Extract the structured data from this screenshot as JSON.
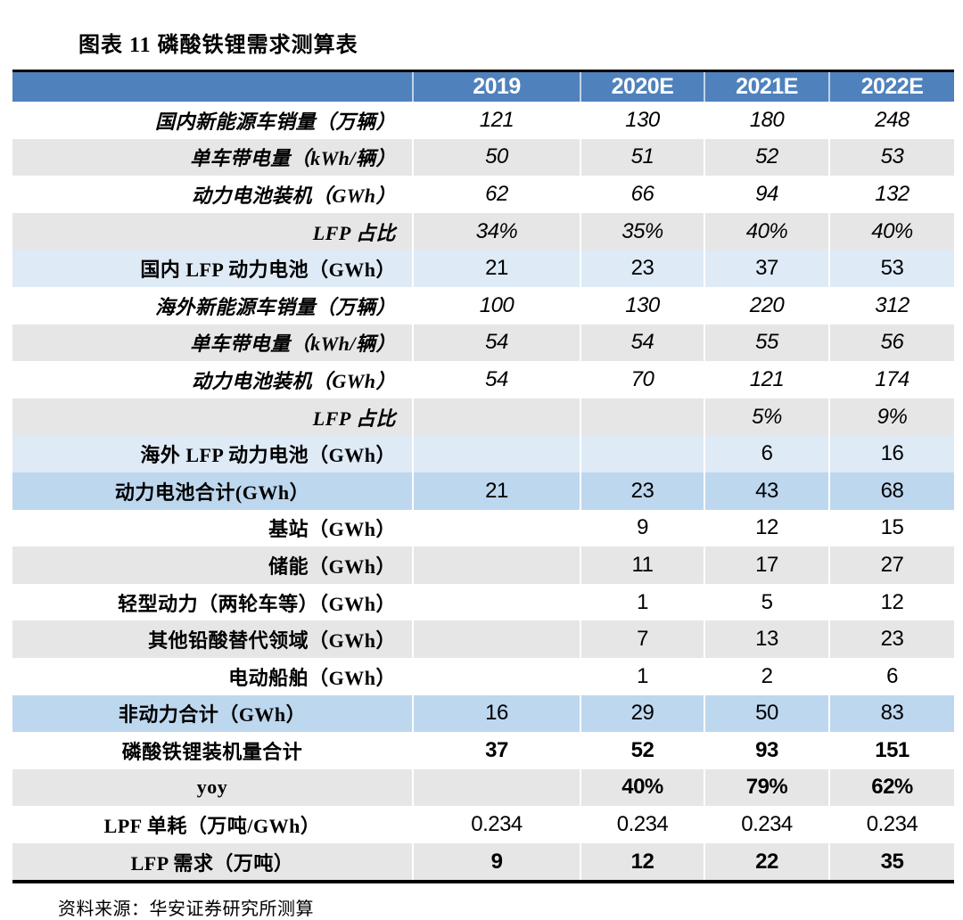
{
  "title": "图表 11 磷酸铁锂需求测算表",
  "source": "资料来源：华安证券研究所测算",
  "colors": {
    "header_bg": "#4f81bd",
    "header_text": "#ffffff",
    "row_gray": "#e7e6e6",
    "row_light_blue": "#deeaf6",
    "row_medium_blue": "#bdd7ee",
    "border_black": "#000000"
  },
  "table": {
    "columns": [
      "",
      "2019",
      "2020E",
      "2021E",
      "2022E"
    ],
    "rows": [
      {
        "label": "国内新能源车销量（万辆）",
        "values": [
          "121",
          "130",
          "180",
          "248"
        ],
        "bg": "white",
        "italic": true,
        "bold": false,
        "align": "right"
      },
      {
        "label": "单车带电量（kWh/辆）",
        "values": [
          "50",
          "51",
          "52",
          "53"
        ],
        "bg": "gray",
        "italic": true,
        "bold": false,
        "align": "right"
      },
      {
        "label": "动力电池装机（GWh）",
        "values": [
          "62",
          "66",
          "94",
          "132"
        ],
        "bg": "white",
        "italic": true,
        "bold": false,
        "align": "right"
      },
      {
        "label": "LFP 占比",
        "values": [
          "34%",
          "35%",
          "40%",
          "40%"
        ],
        "bg": "gray",
        "italic": true,
        "bold": false,
        "align": "right"
      },
      {
        "label": "国内 LFP 动力电池（GWh）",
        "values": [
          "21",
          "23",
          "37",
          "53"
        ],
        "bg": "lightblue",
        "italic": false,
        "bold": false,
        "align": "right"
      },
      {
        "label": "海外新能源车销量（万辆）",
        "values": [
          "100",
          "130",
          "220",
          "312"
        ],
        "bg": "white",
        "italic": true,
        "bold": false,
        "align": "right"
      },
      {
        "label": "单车带电量（kWh/辆）",
        "values": [
          "54",
          "54",
          "55",
          "56"
        ],
        "bg": "gray",
        "italic": true,
        "bold": false,
        "align": "right"
      },
      {
        "label": "动力电池装机（GWh）",
        "values": [
          "54",
          "70",
          "121",
          "174"
        ],
        "bg": "white",
        "italic": true,
        "bold": false,
        "align": "right"
      },
      {
        "label": "LFP 占比",
        "values": [
          "",
          "",
          "5%",
          "9%"
        ],
        "bg": "gray",
        "italic": true,
        "bold": false,
        "align": "right"
      },
      {
        "label": "海外 LFP 动力电池（GWh）",
        "values": [
          "",
          "",
          "6",
          "16"
        ],
        "bg": "lightblue",
        "italic": false,
        "bold": false,
        "align": "right"
      },
      {
        "label": "动力电池合计(GWh）",
        "values": [
          "21",
          "23",
          "43",
          "68"
        ],
        "bg": "medblue",
        "italic": false,
        "bold": false,
        "align": "center"
      },
      {
        "label": "基站（GWh）",
        "values": [
          "",
          "9",
          "12",
          "15"
        ],
        "bg": "white",
        "italic": false,
        "bold": false,
        "align": "right"
      },
      {
        "label": "储能（GWh）",
        "values": [
          "",
          "11",
          "17",
          "27"
        ],
        "bg": "gray",
        "italic": false,
        "bold": false,
        "align": "right"
      },
      {
        "label": "轻型动力（两轮车等）（GWh）",
        "values": [
          "",
          "1",
          "5",
          "12"
        ],
        "bg": "white",
        "italic": false,
        "bold": false,
        "align": "right"
      },
      {
        "label": "其他铅酸替代领域（GWh）",
        "values": [
          "",
          "7",
          "13",
          "23"
        ],
        "bg": "gray",
        "italic": false,
        "bold": false,
        "align": "right"
      },
      {
        "label": "电动船舶（GWh）",
        "values": [
          "",
          "1",
          "2",
          "6"
        ],
        "bg": "white",
        "italic": false,
        "bold": false,
        "align": "right"
      },
      {
        "label": "非动力合计（GWh）",
        "values": [
          "16",
          "29",
          "50",
          "83"
        ],
        "bg": "medblue",
        "italic": false,
        "bold": false,
        "align": "center"
      },
      {
        "label": "磷酸铁锂装机量合计",
        "values": [
          "37",
          "52",
          "93",
          "151"
        ],
        "bg": "white",
        "italic": false,
        "bold": true,
        "align": "center"
      },
      {
        "label": "yoy",
        "values": [
          "",
          "40%",
          "79%",
          "62%"
        ],
        "bg": "gray",
        "italic": false,
        "bold": true,
        "align": "center"
      },
      {
        "label": "LPF 单耗（万吨/GWh）",
        "values": [
          "0.234",
          "0.234",
          "0.234",
          "0.234"
        ],
        "bg": "white",
        "italic": false,
        "bold": false,
        "align": "center"
      },
      {
        "label": "LFP 需求（万吨）",
        "values": [
          "9",
          "12",
          "22",
          "35"
        ],
        "bg": "gray",
        "italic": false,
        "bold": true,
        "align": "center"
      }
    ]
  }
}
